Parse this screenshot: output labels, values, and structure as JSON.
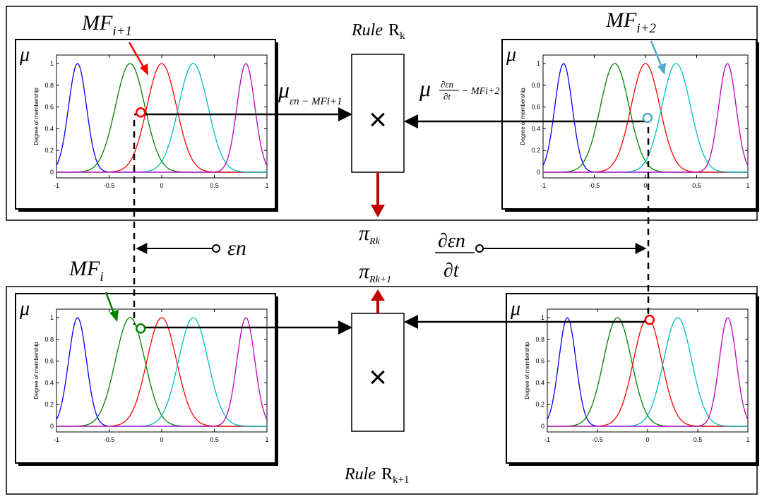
{
  "diagram": {
    "rule_top": {
      "word": "Rule",
      "symbol": "R",
      "subscript": "k"
    },
    "rule_bottom": {
      "word": "Rule",
      "symbol": "R",
      "subscript": "k+1"
    },
    "mf_labels": {
      "top_left": {
        "base": "MF",
        "sub": "i+1"
      },
      "top_right": {
        "base": "MF",
        "sub": "i+2"
      },
      "bottom_left": {
        "base": "MF",
        "sub": "i"
      }
    },
    "mu_symbol": "μ",
    "mu_left_sub": "εn − MFi+1",
    "mu_right_sub_num": "∂εn",
    "mu_right_sub_den": "∂t",
    "mu_right_sub_tail": "− MFi+2",
    "pi_symbol": "π",
    "pi_top_sub": "Rk",
    "pi_bottom_sub": "Rk+1",
    "epsilon_label": "εn",
    "deriv_num": "∂εn",
    "deriv_den": "∂t",
    "product_symbol": "×"
  },
  "plot": {
    "ylabel": "Degree of membership",
    "xticks": [
      "-1",
      "-0.5",
      "0",
      "0.5",
      "1"
    ],
    "yticks": [
      "0",
      "0.2",
      "0.4",
      "0.6",
      "0.8",
      "1"
    ]
  },
  "chart_data": {
    "type": "line",
    "x_range": [
      -1,
      1
    ],
    "y_range": [
      0,
      1
    ],
    "series": [
      {
        "color": "#0000ff",
        "center": -0.8,
        "sigma": 0.085
      },
      {
        "color": "#008000",
        "center": -0.3,
        "sigma": 0.14
      },
      {
        "color": "#ff0000",
        "center": 0.0,
        "sigma": 0.14
      },
      {
        "color": "#00bfbf",
        "center": 0.3,
        "sigma": 0.14
      },
      {
        "color": "#bf00bf",
        "center": 0.8,
        "sigma": 0.085
      }
    ],
    "markers": {
      "top_left": {
        "x": -0.2,
        "y": 0.55,
        "color": "#ff0000"
      },
      "top_right": {
        "x": 0.02,
        "y": 0.5,
        "color": "#4fa9c9"
      },
      "bottom_left": {
        "x": -0.2,
        "y": 0.9,
        "color": "#008000"
      },
      "bottom_right": {
        "x": 0.02,
        "y": 0.98,
        "color": "#ff0000"
      }
    }
  }
}
